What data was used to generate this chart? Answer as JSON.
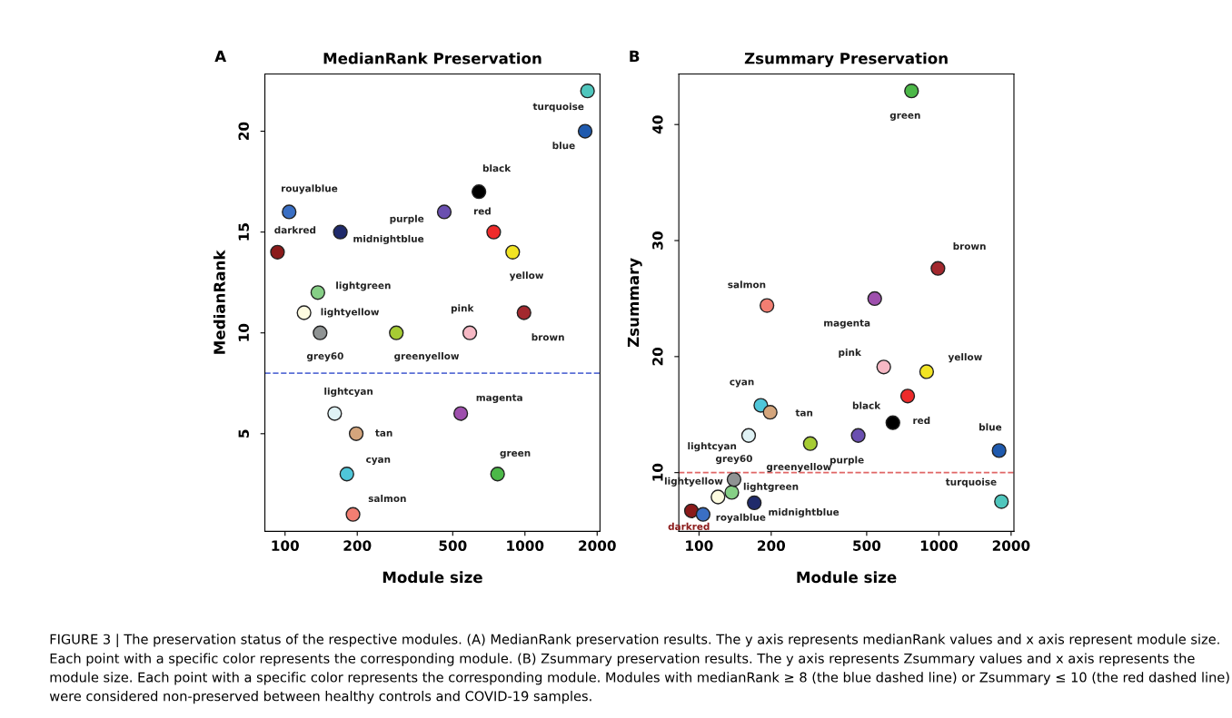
{
  "chart_data": [
    {
      "type": "scatter",
      "title": "MedianRank Preservation",
      "xlabel": "Module size",
      "ylabel": "MedianRank",
      "log": "x",
      "marker": "circle",
      "grid": false,
      "legend": false,
      "xlim": [
        82.4,
        2055
      ],
      "xticks": [
        100,
        200,
        500,
        1000,
        2000
      ],
      "ylim": [
        0.16,
        22.84
      ],
      "yticks": [
        5,
        10,
        15,
        20
      ],
      "ref_lines": [
        {
          "axis": "y",
          "value": 8,
          "color": "#5b6fd6",
          "line_style": "dashed"
        }
      ],
      "annotations": [
        "A",
        "FIGURE 3 | The preservation status of the respective modules. (A) MedianRank preservation results. The y axis represents medianRank values and x axis represent module size. Each point with a specific color represents the corresponding module. (B) Zsummary preservation results. The y axis represents Zsummary values and x axis represents the module size. Each point with a specific color represents the corresponding module. Modules with medianRank ≥ 8 (the blue dashed line) or Zsummary ≤ 10 (the red dashed line) were considered non-preserved between healthy controls and COVID-19 samples."
      ],
      "series": [
        {
          "name": "darkred",
          "color": "#8b1a1a",
          "x": [
            93
          ],
          "values": [
            14
          ]
        },
        {
          "name": "rouyalblue",
          "color": "#3a6fc4",
          "x": [
            104
          ],
          "values": [
            16
          ]
        },
        {
          "name": "lightyellow",
          "color": "#fdfbe0",
          "x": [
            120
          ],
          "values": [
            11
          ]
        },
        {
          "name": "lightgreen",
          "color": "#86cf86",
          "x": [
            137
          ],
          "values": [
            12
          ]
        },
        {
          "name": "grey60",
          "color": "#8f9393",
          "x": [
            140
          ],
          "values": [
            10
          ]
        },
        {
          "name": "midnightblue",
          "color": "#1f2a6b",
          "x": [
            170
          ],
          "values": [
            15
          ]
        },
        {
          "name": "lightcyan",
          "color": "#dff2f5",
          "x": [
            161
          ],
          "values": [
            6
          ]
        },
        {
          "name": "cyan",
          "color": "#4fc6d9",
          "x": [
            181
          ],
          "values": [
            3
          ]
        },
        {
          "name": "salmon",
          "color": "#f27e72",
          "x": [
            192
          ],
          "values": [
            1
          ]
        },
        {
          "name": "tan",
          "color": "#d4a57c",
          "x": [
            198
          ],
          "values": [
            5
          ]
        },
        {
          "name": "greenyellow",
          "color": "#a6cc33",
          "x": [
            291
          ],
          "values": [
            10
          ]
        },
        {
          "name": "purple",
          "color": "#6a4fb0",
          "x": [
            461
          ],
          "values": [
            16
          ]
        },
        {
          "name": "magenta",
          "color": "#9e4fad",
          "x": [
            540
          ],
          "values": [
            6
          ]
        },
        {
          "name": "pink",
          "color": "#f6b8c4",
          "x": [
            589
          ],
          "values": [
            10
          ]
        },
        {
          "name": "black",
          "color": "#000000",
          "x": [
            643
          ],
          "values": [
            17
          ]
        },
        {
          "name": "red",
          "color": "#ee2a2a",
          "x": [
            741
          ],
          "values": [
            15
          ]
        },
        {
          "name": "green",
          "color": "#4cb848",
          "x": [
            769
          ],
          "values": [
            3
          ]
        },
        {
          "name": "yellow",
          "color": "#f2e424",
          "x": [
            889
          ],
          "values": [
            14
          ]
        },
        {
          "name": "brown",
          "color": "#a3282e",
          "x": [
            991
          ],
          "values": [
            11
          ]
        },
        {
          "name": "blue",
          "color": "#1f5aae",
          "x": [
            1782
          ],
          "values": [
            20
          ]
        },
        {
          "name": "turquoise",
          "color": "#4fc6bd",
          "x": [
            1823
          ],
          "values": [
            22
          ]
        }
      ]
    },
    {
      "type": "scatter",
      "title": "Zsummary Preservation",
      "xlabel": "Module size",
      "ylabel": "Zsummary",
      "log": "x",
      "marker": "circle",
      "grid": false,
      "legend": false,
      "xlim": [
        82.4,
        2055
      ],
      "xticks": [
        100,
        200,
        500,
        1000,
        2000
      ],
      "ylim": [
        4.94,
        44.36
      ],
      "yticks": [
        10,
        20,
        30,
        40
      ],
      "ref_lines": [
        {
          "axis": "y",
          "value": 10,
          "color": "#e06666",
          "line_style": "dashed"
        }
      ],
      "annotations": [
        "B"
      ],
      "series": [
        {
          "name": "darkred",
          "color": "#8b1a1a",
          "x": [
            93
          ],
          "values": [
            6.7
          ]
        },
        {
          "name": "royalblue",
          "color": "#3a6fc4",
          "x": [
            104
          ],
          "values": [
            6.4
          ]
        },
        {
          "name": "lightyellow",
          "color": "#fdfbe0",
          "x": [
            120
          ],
          "values": [
            7.9
          ]
        },
        {
          "name": "lightgreen",
          "color": "#86cf86",
          "x": [
            137
          ],
          "values": [
            8.3
          ]
        },
        {
          "name": "grey60",
          "color": "#8f9393",
          "x": [
            140
          ],
          "values": [
            9.4
          ]
        },
        {
          "name": "midnightblue",
          "color": "#1f2a6b",
          "x": [
            170
          ],
          "values": [
            7.4
          ]
        },
        {
          "name": "lightcyan",
          "color": "#dff2f5",
          "x": [
            161
          ],
          "values": [
            13.2
          ]
        },
        {
          "name": "cyan",
          "color": "#4fc6d9",
          "x": [
            181
          ],
          "values": [
            15.8
          ]
        },
        {
          "name": "salmon",
          "color": "#f27e72",
          "x": [
            192
          ],
          "values": [
            24.4
          ]
        },
        {
          "name": "tan",
          "color": "#d4a57c",
          "x": [
            198
          ],
          "values": [
            15.2
          ]
        },
        {
          "name": "greenyellow",
          "color": "#a6cc33",
          "x": [
            291
          ],
          "values": [
            12.5
          ]
        },
        {
          "name": "purple",
          "color": "#6a4fb0",
          "x": [
            461
          ],
          "values": [
            13.2
          ]
        },
        {
          "name": "magenta",
          "color": "#9e4fad",
          "x": [
            540
          ],
          "values": [
            25.0
          ]
        },
        {
          "name": "pink",
          "color": "#f6b8c4",
          "x": [
            589
          ],
          "values": [
            19.1
          ]
        },
        {
          "name": "black",
          "color": "#000000",
          "x": [
            643
          ],
          "values": [
            14.3
          ]
        },
        {
          "name": "red",
          "color": "#ee2a2a",
          "x": [
            741
          ],
          "values": [
            16.6
          ]
        },
        {
          "name": "green",
          "color": "#4cb848",
          "x": [
            769
          ],
          "values": [
            42.9
          ]
        },
        {
          "name": "yellow",
          "color": "#f2e424",
          "x": [
            889
          ],
          "values": [
            18.7
          ]
        },
        {
          "name": "brown",
          "color": "#a3282e",
          "x": [
            991
          ],
          "values": [
            27.6
          ]
        },
        {
          "name": "blue",
          "color": "#1f5aae",
          "x": [
            1782
          ],
          "values": [
            11.9
          ]
        },
        {
          "name": "turquoise",
          "color": "#4fc6bd",
          "x": [
            1823
          ],
          "values": [
            7.5
          ]
        }
      ]
    }
  ]
}
